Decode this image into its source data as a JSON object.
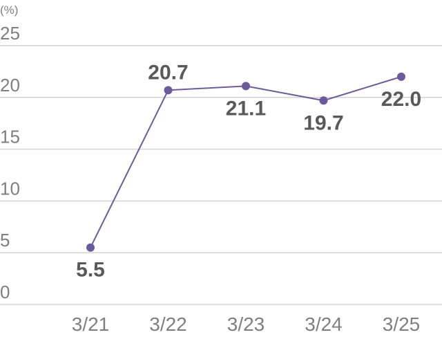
{
  "chart_data": {
    "type": "line",
    "unit_label": "(%)",
    "categories": [
      "3/21",
      "3/22",
      "3/23",
      "3/24",
      "3/25"
    ],
    "series": [
      {
        "values": [
          5.5,
          20.7,
          21.1,
          19.7,
          22.0
        ],
        "color": "#6b5b9a"
      }
    ],
    "data_labels": [
      "5.5",
      "20.7",
      "21.1",
      "19.7",
      "22.0"
    ],
    "y_ticks": [
      "0",
      "5",
      "10",
      "15",
      "20",
      "25"
    ],
    "ylim": [
      0,
      25
    ],
    "grid": true,
    "legend": "none"
  }
}
